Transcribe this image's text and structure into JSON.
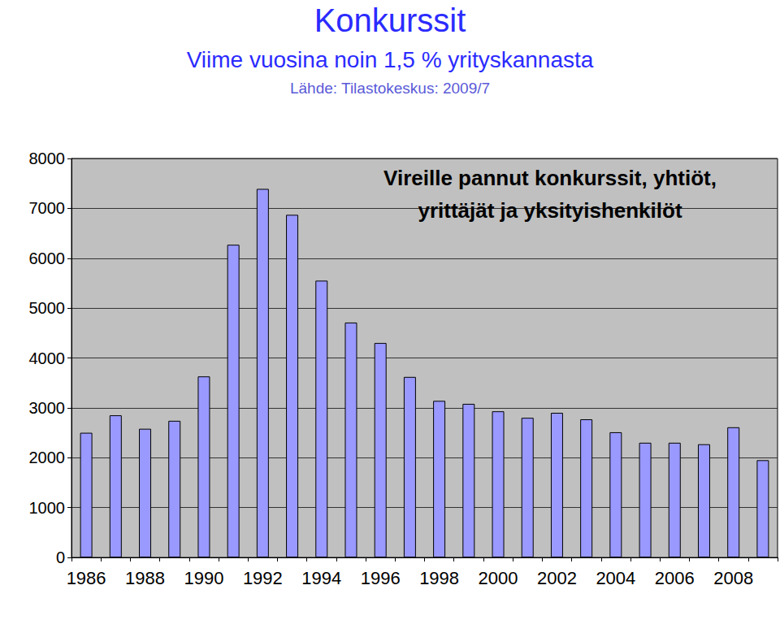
{
  "chart_data": {
    "type": "bar",
    "title": "Konkurssit",
    "subtitle": "Viime vuosina noin 1,5 % yrityskannasta",
    "annotations": [
      "Lähde: Tilastokeskus: 2009/7",
      "Vireille pannut konkurssit, yhtiöt,\nyrittäjät ja yksityishenkilöt"
    ],
    "categories": [
      "1986",
      null,
      "1988",
      null,
      "1990",
      null,
      "1992",
      null,
      "1994",
      null,
      "1996",
      null,
      "1998",
      null,
      "2000",
      null,
      "2002",
      null,
      "2004",
      null,
      "2006",
      null,
      "2008",
      null
    ],
    "values": [
      2500,
      2850,
      2580,
      2740,
      3630,
      6270,
      7390,
      6870,
      5550,
      4710,
      4300,
      3620,
      3140,
      3080,
      2930,
      2800,
      2900,
      2770,
      2510,
      2300,
      2300,
      2270,
      2610,
      1950
    ],
    "color": "#9999ff",
    "ylim": [
      0,
      8000
    ],
    "yticks": [
      0,
      1000,
      2000,
      3000,
      4000,
      5000,
      6000,
      7000,
      8000
    ],
    "grid": true
  }
}
